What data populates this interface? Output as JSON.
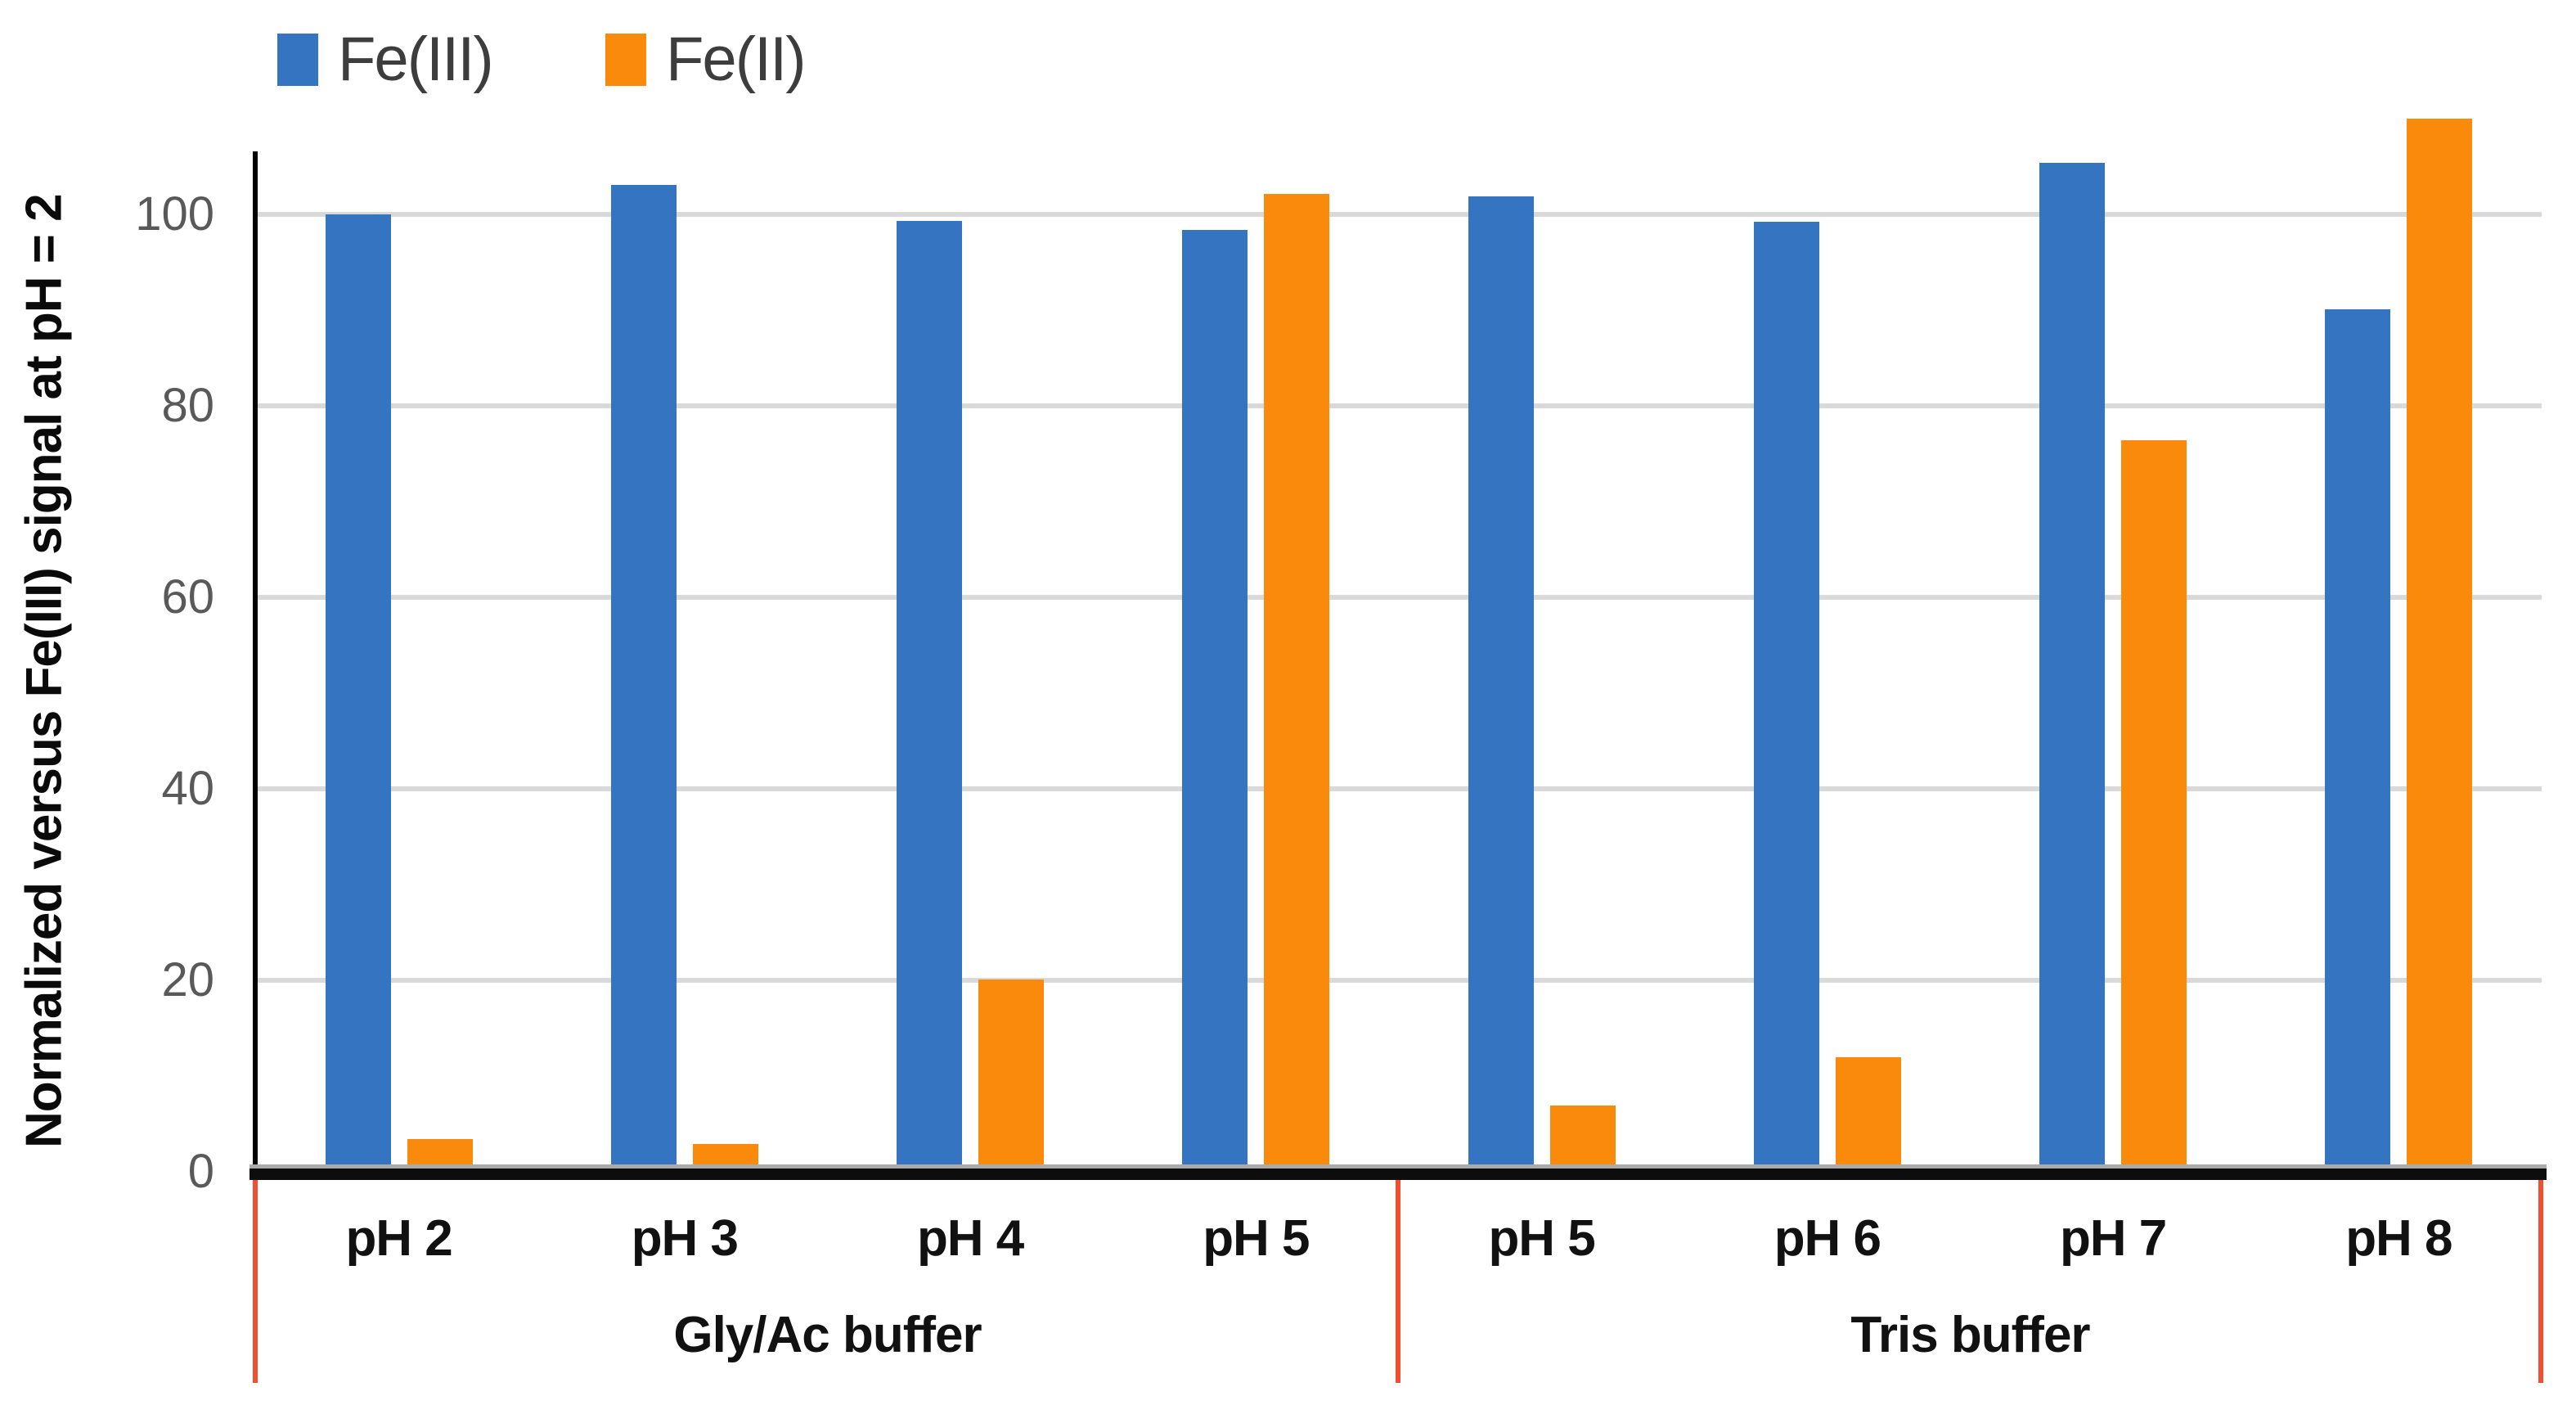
{
  "chart_data": {
    "type": "bar",
    "title": "",
    "ylabel": "Normalized versus Fe(III) signal at pH = 2",
    "xlabel": "",
    "categories": [
      "pH 2",
      "pH 3",
      "pH 4",
      "pH 5",
      "pH 5",
      "pH 6",
      "pH 7",
      "pH 8"
    ],
    "groups": [
      {
        "label": "Gly/Ac buffer",
        "start": 0,
        "end": 3
      },
      {
        "label": "Tris buffer",
        "start": 4,
        "end": 7
      }
    ],
    "series": [
      {
        "name": "Fe(III)",
        "color": "#3474c0",
        "values": [
          100,
          103.1,
          99.3,
          98.4,
          101.9,
          99.2,
          105.4,
          90.1
        ]
      },
      {
        "name": "Fe(II)",
        "color": "#fa8a0b",
        "values": [
          3.4,
          2.9,
          20.1,
          102.1,
          6.9,
          12.0,
          76.4,
          110.0
        ]
      }
    ],
    "yticks": [
      0,
      20,
      40,
      60,
      80,
      100
    ],
    "ylim": [
      0,
      112
    ],
    "grid": true,
    "legend_position": "top-left",
    "colors": {
      "gridline": "#d9d9d9",
      "axis": "#000000",
      "tick_label": "#595959",
      "category_label": "#111111",
      "legend_text": "#3d3d3d",
      "group_divider": "#f0502f"
    }
  }
}
